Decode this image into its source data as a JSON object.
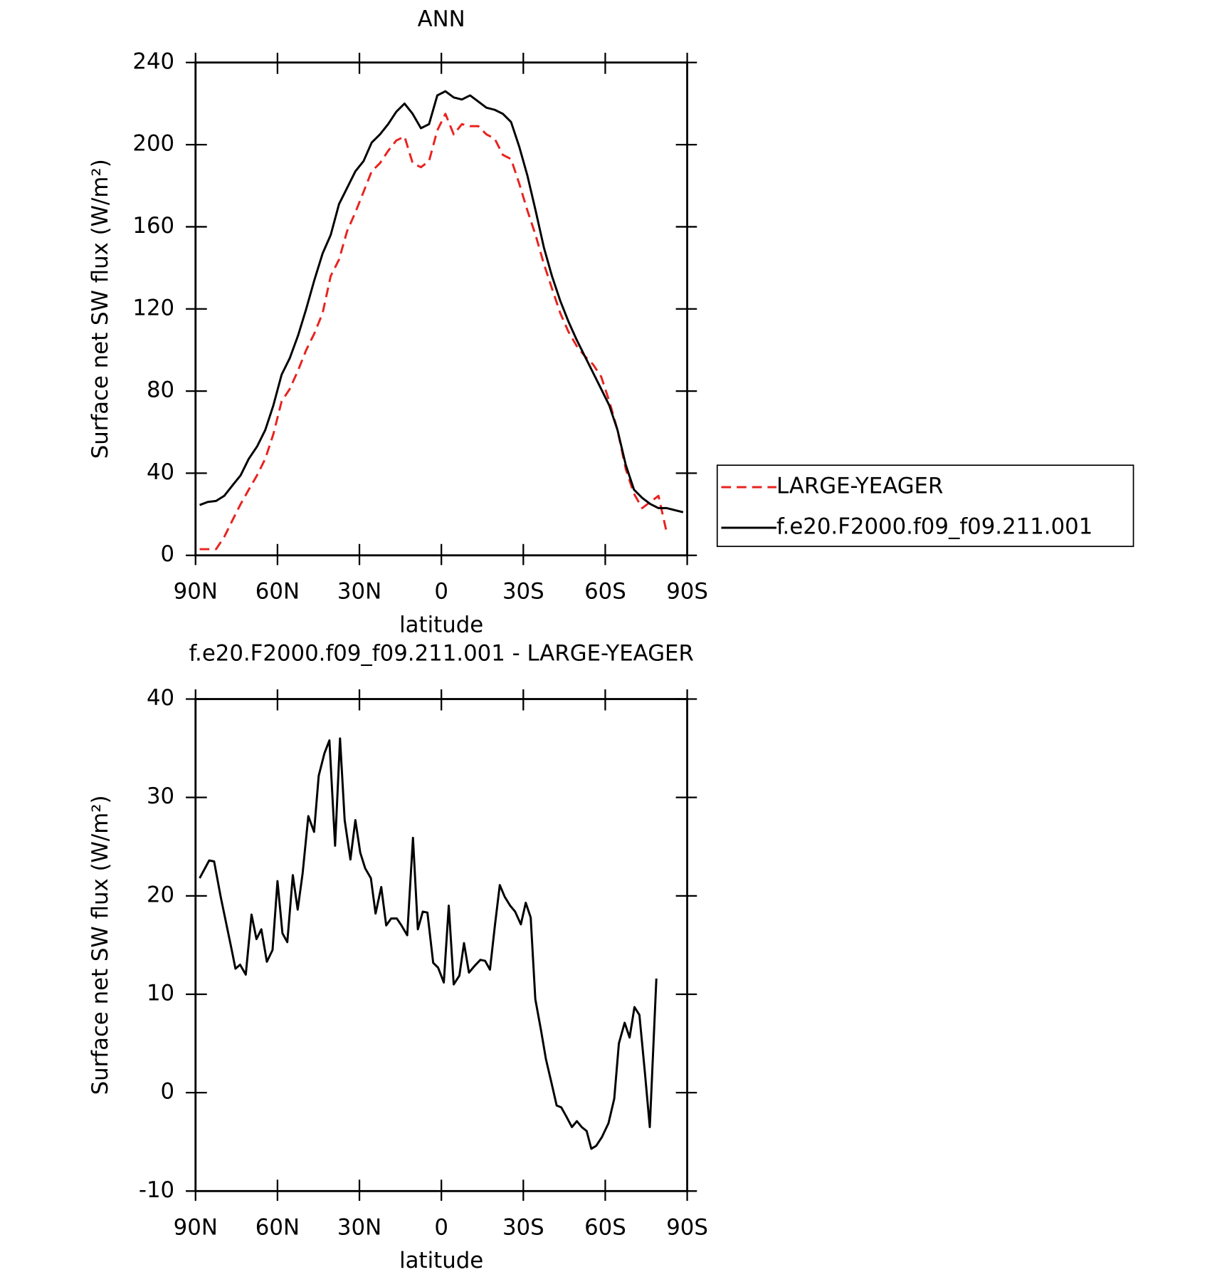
{
  "chart_data": [
    {
      "type": "line",
      "title": "ANN",
      "xlabel": "latitude",
      "ylabel": "Surface net SW flux (W/m²)",
      "x": [
        88.5,
        85.5,
        82.5,
        79.5,
        76.5,
        73.5,
        70.5,
        67.5,
        64.5,
        61.5,
        58.5,
        55.5,
        52.5,
        49.5,
        46.5,
        43.5,
        40.5,
        37.5,
        34.5,
        31.5,
        28.5,
        25.5,
        22.5,
        19.5,
        16.5,
        13.5,
        10.5,
        7.5,
        4.5,
        1.5,
        -1.5,
        -4.5,
        -7.5,
        -10.5,
        -13.5,
        -16.5,
        -19.5,
        -22.5,
        -25.5,
        -28.5,
        -31.5,
        -34.5,
        -37.5,
        -40.5,
        -43.5,
        -46.5,
        -49.5,
        -52.5,
        -55.5,
        -58.5,
        -61.5,
        -64.5,
        -67.5,
        -70.5,
        -73.5,
        -76.5,
        -79.5,
        -82.5,
        -85.5,
        -88.5
      ],
      "series": [
        {
          "name": "LARGE-YEAGER",
          "color": "#e8231f",
          "dash": true,
          "values": [
            3,
            3,
            3,
            9,
            17,
            25,
            32,
            39,
            47,
            59,
            75,
            81,
            90,
            100,
            108,
            118,
            136,
            144,
            158,
            167,
            177,
            187,
            191,
            197,
            202,
            204,
            191,
            189,
            192,
            207,
            215,
            205,
            210,
            209,
            209,
            205,
            203,
            195,
            193,
            181,
            168,
            156,
            142,
            130,
            118,
            109,
            102,
            97,
            93,
            87,
            75,
            61,
            42,
            30,
            23,
            26,
            29,
            11,
            null,
            null
          ]
        },
        {
          "name": "f.e20.F2000.f09_f09.211.001",
          "color": "#000000",
          "dash": false,
          "values": [
            24.5,
            26,
            26.5,
            29,
            34,
            39,
            47,
            53,
            61,
            73,
            88,
            96,
            107,
            120,
            134,
            147,
            156,
            171,
            179,
            187,
            192,
            201,
            205,
            210,
            216,
            220,
            215,
            208,
            210,
            224,
            226,
            223,
            222,
            224,
            221,
            218,
            217,
            215,
            211,
            199,
            185,
            168,
            150,
            136,
            124,
            114,
            105,
            97,
            89,
            81,
            73,
            61,
            44,
            32,
            28,
            25,
            23,
            23,
            22,
            21
          ]
        }
      ],
      "xlim": [
        90,
        -90
      ],
      "xticks": [
        {
          "value": 90,
          "label": "90N"
        },
        {
          "value": 60,
          "label": "60N"
        },
        {
          "value": 30,
          "label": "30N"
        },
        0,
        {
          "value": -30,
          "label": "30S"
        },
        {
          "value": -60,
          "label": "60S"
        },
        {
          "value": -90,
          "label": "90S"
        }
      ],
      "ylim": [
        0,
        240
      ],
      "yticks": [
        0,
        40,
        80,
        120,
        160,
        200,
        240
      ],
      "legend": "outside-right"
    },
    {
      "type": "line",
      "title": "f.e20.F2000.f09_f09.211.001 - LARGE-YEAGER",
      "xlabel": "latitude",
      "ylabel": "Surface net SW flux (W/m²)",
      "x": [
        88.5,
        85.0,
        83.2,
        80.8,
        76.9,
        75.4,
        73.7,
        71.6,
        69.5,
        67.7,
        65.9,
        63.9,
        61.8,
        60.0,
        58.2,
        56.4,
        54.4,
        52.6,
        50.8,
        48.7,
        46.6,
        44.9,
        42.8,
        41.0,
        38.9,
        37.1,
        35.4,
        33.3,
        31.5,
        29.7,
        27.9,
        25.8,
        24.1,
        22.0,
        20.2,
        18.4,
        16.3,
        14.6,
        12.5,
        10.4,
        8.6,
        6.8,
        5.1,
        3.0,
        1.2,
        -0.9,
        -2.7,
        -4.5,
        -6.6,
        -8.3,
        -10.1,
        -12.2,
        -14.3,
        -16.0,
        -17.8,
        -19.6,
        -21.4,
        -23.2,
        -25.2,
        -27.0,
        -29.1,
        -30.9,
        -32.7,
        -34.4,
        -36.5,
        -38.3,
        -40.4,
        -42.2,
        -43.9,
        -45.7,
        -47.8,
        -49.6,
        -51.4,
        -53.2,
        -54.9,
        -56.7,
        -58.8,
        -61.2,
        -63.3,
        -65.0,
        -67.1,
        -68.9,
        -70.7,
        -72.5,
        -74.5,
        -76.3,
        -78.7
      ],
      "series": [
        {
          "name": "f.e20.F2000.f09_f09.211.001 - LARGE-YEAGER",
          "color": "#000000",
          "dash": false,
          "values": [
            21.8,
            23.6,
            23.5,
            19.9,
            14.7,
            12.6,
            13,
            12,
            18.1,
            15.6,
            16.6,
            13.3,
            14.5,
            21.5,
            16.2,
            15.3,
            22.1,
            18.6,
            22.3,
            28.1,
            26.5,
            32.2,
            34.5,
            35.8,
            25.1,
            36,
            27.7,
            23.7,
            27.7,
            24.4,
            22.8,
            21.8,
            18.2,
            20.9,
            17,
            17.7,
            17.7,
            17,
            16,
            25.9,
            16.6,
            18.4,
            18.3,
            13.2,
            12.7,
            11.2,
            19,
            11,
            11.9,
            15.2,
            12.2,
            12.9,
            13.5,
            13.4,
            12.5,
            17,
            21.1,
            19.9,
            19,
            18.4,
            17.1,
            19.3,
            17.8,
            9.5,
            6.3,
            3.4,
            0.9,
            -1.3,
            -1.5,
            -2.4,
            -3.5,
            -2.9,
            -3.5,
            -3.9,
            -5.7,
            -5.4,
            -4.5,
            -3.1,
            -0.6,
            5,
            7.1,
            5.6,
            8.7,
            7.9,
            2.1,
            -3.5,
            11.6
          ]
        }
      ],
      "xlim": [
        90,
        -90
      ],
      "xticks": [
        {
          "value": 90,
          "label": "90N"
        },
        {
          "value": 60,
          "label": "60N"
        },
        {
          "value": 30,
          "label": "30N"
        },
        0,
        {
          "value": -30,
          "label": "30S"
        },
        {
          "value": -60,
          "label": "60S"
        },
        {
          "value": -90,
          "label": "90S"
        }
      ],
      "ylim": [
        -10,
        40
      ],
      "yticks": [
        -10,
        0,
        10,
        20,
        30,
        40
      ]
    }
  ]
}
